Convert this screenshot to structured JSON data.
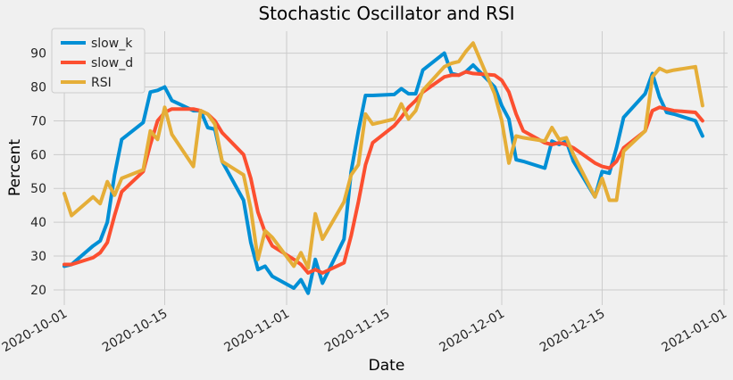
{
  "chart_data": {
    "type": "line",
    "title": "Stochastic Oscillator and RSI",
    "xlabel": "Date",
    "ylabel": "Percent",
    "x_range": [
      -1.5,
      92.5
    ],
    "ylim": [
      15.5,
      96.5
    ],
    "yticks": [
      20,
      30,
      40,
      50,
      60,
      70,
      80,
      90
    ],
    "xtick_positions": [
      0,
      14,
      31,
      45,
      61,
      75,
      92
    ],
    "xtick_labels": [
      "2020-10-01",
      "2020-10-15",
      "2020-11-01",
      "2020-11-15",
      "2020-12-01",
      "2020-12-15",
      "2021-01-01"
    ],
    "legend_position": "top-left",
    "grid": true,
    "x_unit": "days since 2020-10-01",
    "series": [
      {
        "name": "slow_k",
        "color": "#008fd5",
        "x": [
          0,
          1,
          4,
          5,
          6,
          7,
          8,
          11,
          12,
          13,
          14,
          15,
          18,
          19,
          20,
          21,
          22,
          25,
          26,
          27,
          28,
          29,
          32,
          33,
          34,
          35,
          36,
          39,
          40,
          41,
          42,
          43,
          46,
          47,
          48,
          49,
          50,
          53,
          54,
          55,
          56,
          57,
          60,
          61,
          62,
          63,
          64,
          67,
          68,
          69,
          70,
          71,
          74,
          75,
          76,
          77,
          78,
          81,
          82,
          83,
          84,
          85,
          88,
          89
        ],
        "y": [
          27,
          27.5,
          33,
          34.5,
          40,
          54,
          64.5,
          69.5,
          78.5,
          79,
          80,
          76,
          73,
          73,
          68,
          67.5,
          58,
          46.5,
          34,
          26,
          27,
          24,
          20.5,
          23,
          19,
          29,
          22,
          35,
          55,
          67,
          77.5,
          77.5,
          77.8,
          79.5,
          78,
          78,
          85,
          90,
          84,
          83.5,
          84.5,
          86.5,
          80,
          74.5,
          70.5,
          58.5,
          58,
          56,
          64,
          63,
          64,
          58,
          47.5,
          55,
          54.5,
          62,
          71,
          78,
          84,
          77,
          72.5,
          72,
          70,
          65.5
        ]
      },
      {
        "name": "slow_d",
        "color": "#fc4f30",
        "x": [
          0,
          1,
          4,
          5,
          6,
          7,
          8,
          11,
          12,
          13,
          14,
          15,
          18,
          19,
          20,
          21,
          22,
          25,
          26,
          27,
          28,
          29,
          32,
          33,
          34,
          35,
          36,
          39,
          40,
          41,
          42,
          43,
          46,
          47,
          48,
          49,
          50,
          53,
          54,
          55,
          56,
          57,
          60,
          61,
          62,
          63,
          64,
          67,
          68,
          69,
          70,
          71,
          74,
          75,
          76,
          77,
          78,
          81,
          82,
          83,
          84,
          85,
          88,
          89
        ],
        "y": [
          27.5,
          27.5,
          29.5,
          31,
          34,
          42,
          49,
          55,
          63,
          70,
          72.5,
          73.5,
          73.5,
          73,
          72,
          70,
          66.5,
          60,
          53,
          43,
          37,
          33,
          29,
          27.5,
          25,
          26,
          25,
          28,
          36,
          46,
          57,
          63.5,
          68.5,
          71,
          74,
          76,
          78.5,
          83,
          83.5,
          83.5,
          84.5,
          84,
          83.5,
          82,
          78.5,
          72,
          67,
          63.5,
          63,
          63.5,
          63,
          62,
          57.5,
          56.5,
          56,
          58,
          62,
          67,
          73,
          74,
          73.5,
          73,
          72.5,
          70
        ]
      },
      {
        "name": "RSI",
        "color": "#e5ae38",
        "x": [
          0,
          1,
          4,
          5,
          6,
          7,
          8,
          11,
          12,
          13,
          14,
          15,
          18,
          19,
          20,
          21,
          22,
          25,
          26,
          27,
          28,
          29,
          32,
          33,
          34,
          35,
          36,
          39,
          40,
          41,
          42,
          43,
          46,
          47,
          48,
          49,
          50,
          53,
          54,
          55,
          56,
          57,
          60,
          61,
          62,
          63,
          64,
          67,
          68,
          69,
          70,
          71,
          74,
          75,
          76,
          77,
          78,
          81,
          82,
          83,
          84,
          85,
          88,
          89
        ],
        "y": [
          48.5,
          42,
          47.5,
          45.5,
          52,
          48,
          53,
          55.5,
          67,
          64.5,
          74,
          66,
          56.5,
          73,
          72,
          69,
          58,
          54,
          44,
          29,
          37.5,
          35.5,
          27,
          31,
          26.5,
          42.5,
          35,
          46,
          54,
          57,
          72,
          69,
          70.5,
          75,
          70.5,
          73,
          79,
          86,
          87,
          87.5,
          90.5,
          93,
          78,
          70,
          57.5,
          65.5,
          65,
          64,
          68,
          64.5,
          65,
          60,
          47.5,
          53,
          46.5,
          46.5,
          61,
          67,
          83,
          85.5,
          84.5,
          85,
          86,
          74.5
        ]
      }
    ]
  }
}
